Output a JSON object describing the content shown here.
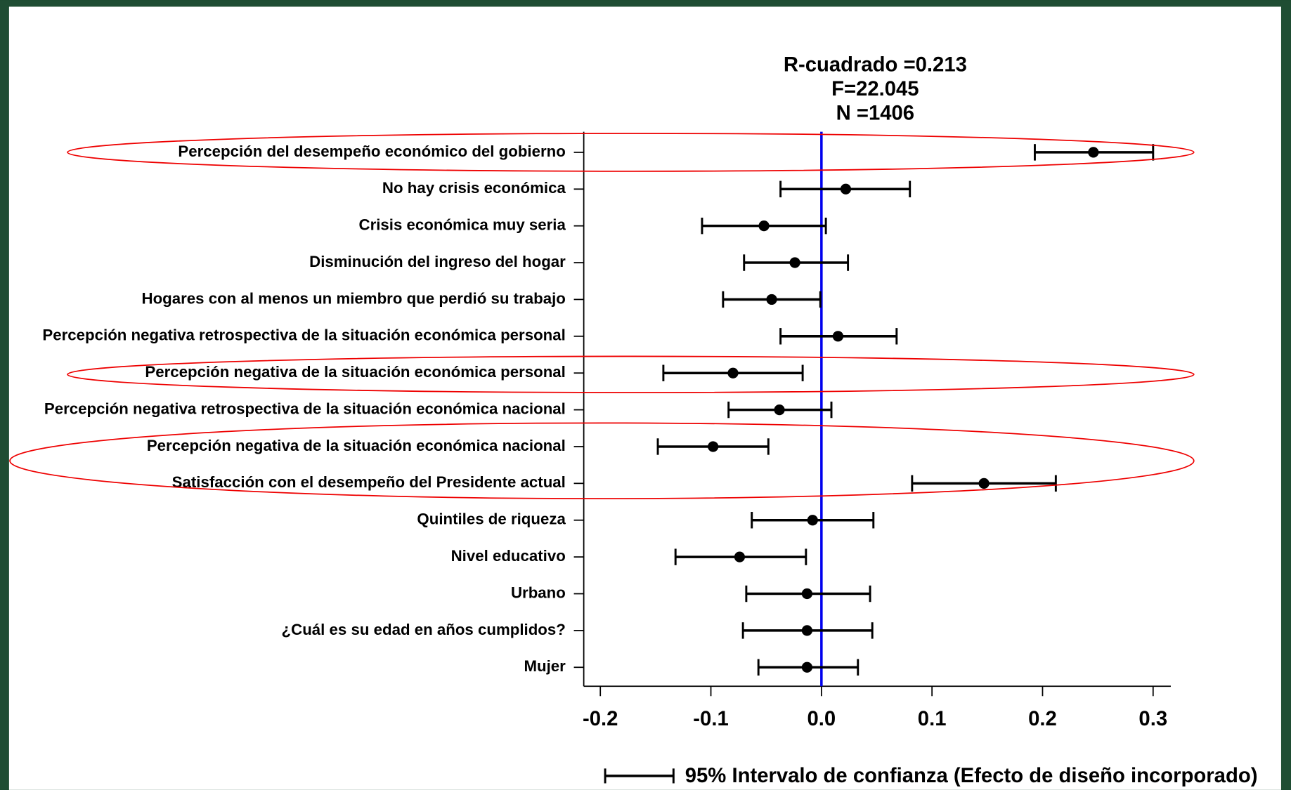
{
  "chart_data": {
    "type": "coefficient",
    "title_lines": [
      "R-cuadrado =0.213",
      "F=22.045",
      "N =1406"
    ],
    "categories": [
      "Percepción del desempeño económico del gobierno",
      "No hay crisis económica",
      "Crisis económica muy seria",
      "Disminución del ingreso del hogar",
      "Hogares con al menos un miembro que perdió su trabajo",
      "Percepción negativa retrospectiva de la situación económica personal",
      "Percepción negativa de la situación económica personal",
      "Percepción negativa retrospectiva de la situación económica nacional",
      "Percepción negativa de la situación económica nacional",
      "Satisfacción con el desempeño del Presidente actual",
      "Quintiles de riqueza",
      "Nivel educativo",
      "Urbano",
      "¿Cuál es su edad en años cumplidos?",
      "Mujer"
    ],
    "values": [
      0.246,
      0.022,
      -0.052,
      -0.024,
      -0.045,
      0.015,
      -0.08,
      -0.038,
      -0.098,
      0.147,
      -0.008,
      -0.074,
      -0.013,
      -0.013,
      -0.013
    ],
    "ci_low": [
      0.193,
      -0.037,
      -0.108,
      -0.07,
      -0.089,
      -0.037,
      -0.143,
      -0.084,
      -0.148,
      0.082,
      -0.063,
      -0.132,
      -0.068,
      -0.071,
      -0.057
    ],
    "ci_high": [
      0.3,
      0.08,
      0.004,
      0.024,
      -0.001,
      0.068,
      -0.017,
      0.009,
      -0.048,
      0.212,
      0.047,
      -0.014,
      0.044,
      0.046,
      0.033
    ],
    "color": "#000000",
    "xlim": [
      -0.215,
      0.316
    ],
    "xticks": [
      -0.2,
      -0.1,
      {
        "value": 0,
        "label": "0.0"
      },
      0.1,
      0.2,
      0.3
    ],
    "reference_line": 0,
    "reference_color": "#0000ee",
    "legend_label": "95% Intervalo de confianza (Efecto de diseño incorporado)"
  }
}
